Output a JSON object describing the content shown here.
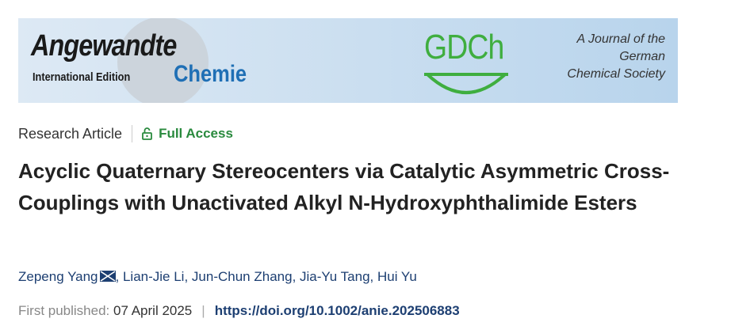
{
  "banner": {
    "journal_name": "Angewandte",
    "edition": "International Edition",
    "chemie": "Chemie",
    "gdch": "GDCh",
    "society": [
      "A Journal of the",
      "German",
      "Chemical Society"
    ]
  },
  "meta": {
    "article_type": "Research Article",
    "access": "Full Access"
  },
  "title": "Acyclic Quaternary Stereocenters via Catalytic Asymmetric Cross-Couplings with Unactivated Alkyl N-Hydroxyphthalimide Esters",
  "authors": [
    "Zepeng Yang",
    "Lian-Jie Li",
    "Jun-Chun Zhang",
    "Jia-Yu Tang",
    "Hui Yu"
  ],
  "published": {
    "label": "First published:",
    "date": "07 April 2025",
    "separator": "|",
    "doi": "https://doi.org/10.1002/anie.202506883"
  }
}
